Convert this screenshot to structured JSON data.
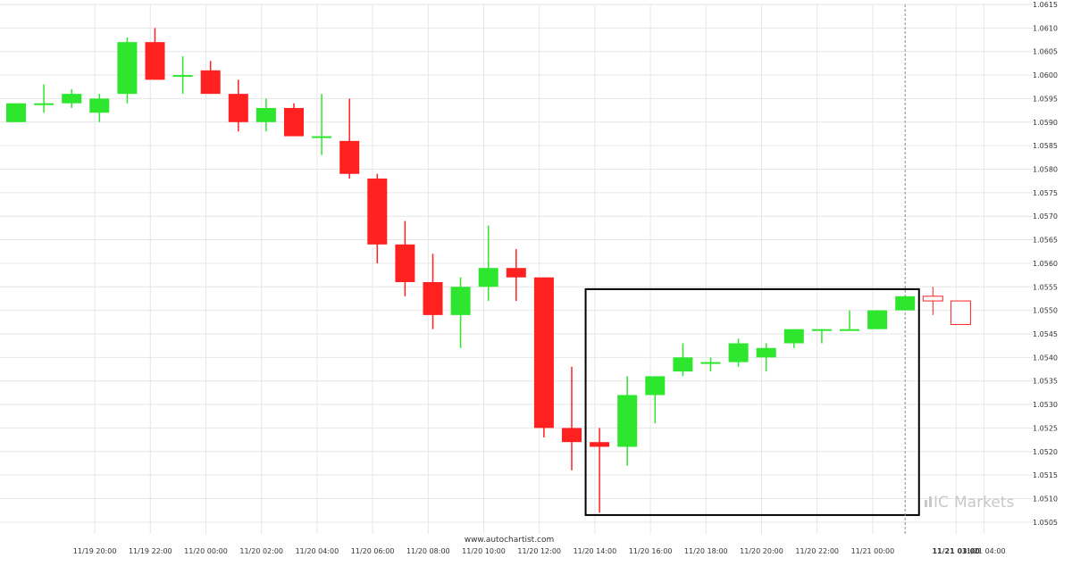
{
  "watermark": "www.autochartist.com",
  "brand": {
    "prefix": "IC",
    "name": "Markets"
  },
  "colors": {
    "up": "#2ee62e",
    "down": "#ff2020",
    "grid": "#e6e6e6",
    "axis_text": "#333333",
    "pattern_box": "#000000",
    "forecast": "#ff2020",
    "brand": "#c8c8c8"
  },
  "chart_data": {
    "type": "candlestick",
    "title": "",
    "xlabel": "",
    "ylabel": "",
    "ylim": [
      1.05025,
      1.0615
    ],
    "y_ticks": [
      "1.0505",
      "1.0510",
      "1.0515",
      "1.0520",
      "1.0525",
      "1.0530",
      "1.0535",
      "1.0540",
      "1.0545",
      "1.0550",
      "1.0555",
      "1.0560",
      "1.0565",
      "1.0570",
      "1.0575",
      "1.0580",
      "1.0585",
      "1.0590",
      "1.0595",
      "1.0600",
      "1.0605",
      "1.0610",
      "1.0615"
    ],
    "x_ticks": [
      {
        "label": "11/19 20:00",
        "i": 1,
        "bold": false
      },
      {
        "label": "11/19 22:00",
        "i": 3,
        "bold": false
      },
      {
        "label": "11/20 00:00",
        "i": 5,
        "bold": false
      },
      {
        "label": "11/20 02:00",
        "i": 7,
        "bold": false
      },
      {
        "label": "11/20 04:00",
        "i": 9,
        "bold": false
      },
      {
        "label": "11/20 06:00",
        "i": 11,
        "bold": false
      },
      {
        "label": "11/20 08:00",
        "i": 13,
        "bold": false
      },
      {
        "label": "11/20 10:00",
        "i": 15,
        "bold": false
      },
      {
        "label": "11/20 12:00",
        "i": 17,
        "bold": false
      },
      {
        "label": "11/20 14:00",
        "i": 19,
        "bold": false
      },
      {
        "label": "11/20 16:00",
        "i": 21,
        "bold": false
      },
      {
        "label": "11/20 18:00",
        "i": 23,
        "bold": false
      },
      {
        "label": "11/20 20:00",
        "i": 25,
        "bold": false
      },
      {
        "label": "11/20 22:00",
        "i": 27,
        "bold": false
      },
      {
        "label": "11/21 00:00",
        "i": 29,
        "bold": false
      },
      {
        "label": "11/21 03:00",
        "i": 32,
        "bold": true
      },
      {
        "label": "11/21 04:00",
        "i": 33,
        "bold": false
      }
    ],
    "candles": [
      {
        "i": 0,
        "o": 1.059,
        "h": 1.0594,
        "l": 1.059,
        "c": 1.0594
      },
      {
        "i": 1,
        "o": 1.0594,
        "h": 1.0598,
        "l": 1.0592,
        "c": 1.0594
      },
      {
        "i": 2,
        "o": 1.0594,
        "h": 1.0597,
        "l": 1.0593,
        "c": 1.0596
      },
      {
        "i": 3,
        "o": 1.0592,
        "h": 1.0596,
        "l": 1.059,
        "c": 1.0595
      },
      {
        "i": 4,
        "o": 1.0596,
        "h": 1.0608,
        "l": 1.0594,
        "c": 1.0607
      },
      {
        "i": 5,
        "o": 1.0607,
        "h": 1.061,
        "l": 1.0599,
        "c": 1.0599
      },
      {
        "i": 6,
        "o": 1.06,
        "h": 1.0604,
        "l": 1.0596,
        "c": 1.06
      },
      {
        "i": 7,
        "o": 1.0601,
        "h": 1.0603,
        "l": 1.0596,
        "c": 1.0596
      },
      {
        "i": 8,
        "o": 1.0596,
        "h": 1.0599,
        "l": 1.0588,
        "c": 1.059
      },
      {
        "i": 9,
        "o": 1.059,
        "h": 1.0595,
        "l": 1.0588,
        "c": 1.0593
      },
      {
        "i": 10,
        "o": 1.0593,
        "h": 1.0594,
        "l": 1.0587,
        "c": 1.0587
      },
      {
        "i": 11,
        "o": 1.0587,
        "h": 1.0596,
        "l": 1.0583,
        "c": 1.0587
      },
      {
        "i": 12,
        "o": 1.0586,
        "h": 1.0595,
        "l": 1.0578,
        "c": 1.0579
      },
      {
        "i": 13,
        "o": 1.0578,
        "h": 1.0579,
        "l": 1.056,
        "c": 1.0564
      },
      {
        "i": 14,
        "o": 1.0564,
        "h": 1.0569,
        "l": 1.0553,
        "c": 1.0556
      },
      {
        "i": 15,
        "o": 1.0556,
        "h": 1.0562,
        "l": 1.0546,
        "c": 1.0549
      },
      {
        "i": 16,
        "o": 1.0549,
        "h": 1.0557,
        "l": 1.0542,
        "c": 1.0555
      },
      {
        "i": 17,
        "o": 1.0555,
        "h": 1.0568,
        "l": 1.0552,
        "c": 1.0559
      },
      {
        "i": 18,
        "o": 1.0559,
        "h": 1.0563,
        "l": 1.0552,
        "c": 1.0557
      },
      {
        "i": 19,
        "o": 1.0557,
        "h": 1.0557,
        "l": 1.0523,
        "c": 1.0525
      },
      {
        "i": 20,
        "o": 1.0525,
        "h": 1.0538,
        "l": 1.0516,
        "c": 1.0522
      },
      {
        "i": 21,
        "o": 1.0522,
        "h": 1.0525,
        "l": 1.0507,
        "c": 1.0521
      },
      {
        "i": 22,
        "o": 1.0521,
        "h": 1.0536,
        "l": 1.0517,
        "c": 1.0532
      },
      {
        "i": 23,
        "o": 1.0532,
        "h": 1.0536,
        "l": 1.0526,
        "c": 1.0536
      },
      {
        "i": 24,
        "o": 1.0537,
        "h": 1.0543,
        "l": 1.0536,
        "c": 1.054
      },
      {
        "i": 25,
        "o": 1.0539,
        "h": 1.054,
        "l": 1.0537,
        "c": 1.0539
      },
      {
        "i": 26,
        "o": 1.0539,
        "h": 1.0544,
        "l": 1.0538,
        "c": 1.0543
      },
      {
        "i": 27,
        "o": 1.054,
        "h": 1.0543,
        "l": 1.0537,
        "c": 1.0542
      },
      {
        "i": 28,
        "o": 1.0543,
        "h": 1.0546,
        "l": 1.0542,
        "c": 1.0546
      },
      {
        "i": 29,
        "o": 1.0546,
        "h": 1.0546,
        "l": 1.0543,
        "c": 1.0546
      },
      {
        "i": 30,
        "o": 1.0546,
        "h": 1.055,
        "l": 1.0546,
        "c": 1.0546
      },
      {
        "i": 31,
        "o": 1.0546,
        "h": 1.055,
        "l": 1.0546,
        "c": 1.055
      },
      {
        "i": 32,
        "o": 1.055,
        "h": 1.0553,
        "l": 1.055,
        "c": 1.0553
      }
    ],
    "forecast_candles": [
      {
        "i": 33,
        "top": 1.0553,
        "bottom": 1.0552,
        "h": 1.0555,
        "l": 1.0549
      },
      {
        "i": 34,
        "top": 1.0552,
        "bottom": 1.0547,
        "h": 1.0552,
        "l": 1.0547
      }
    ],
    "pattern_box": {
      "i_start": 20.5,
      "i_end": 32.5,
      "top": 1.05545,
      "bottom": 1.05065
    },
    "vline_i": 32,
    "grid": true
  }
}
